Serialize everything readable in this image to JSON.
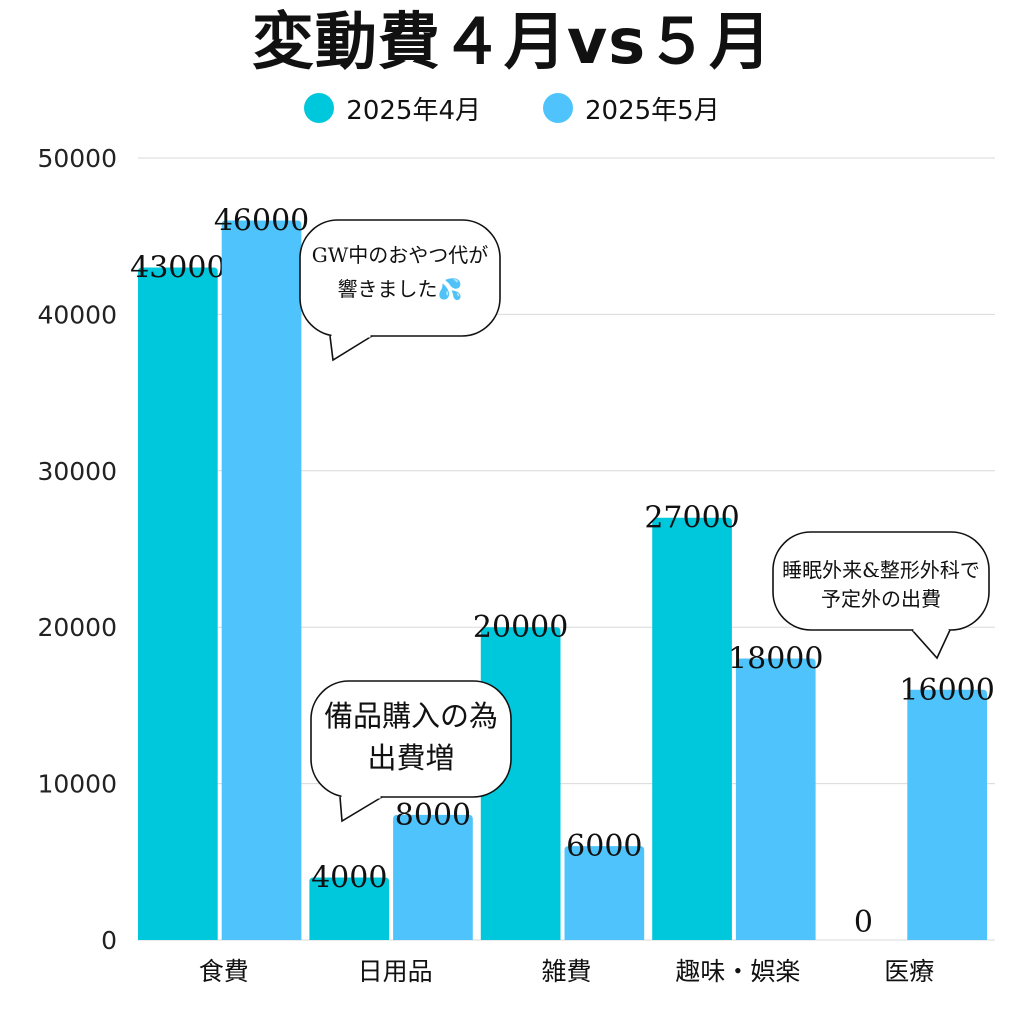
{
  "chart_data": {
    "type": "bar",
    "title": "変動費４月vs５月",
    "categories": [
      "食費",
      "日用品",
      "雑費",
      "趣味・娯楽",
      "医療"
    ],
    "series": [
      {
        "name": "2025年4月",
        "color": "#00C8DC",
        "values": [
          43000,
          4000,
          20000,
          27000,
          0
        ]
      },
      {
        "name": "2025年5月",
        "color": "#4FC4FC",
        "values": [
          46000,
          8000,
          6000,
          18000,
          16000
        ]
      }
    ],
    "y_ticks": [
      "0",
      "10000",
      "20000",
      "30000",
      "40000",
      "50000"
    ],
    "ylim": [
      0,
      50000
    ],
    "grid": true,
    "legend": "top-center",
    "annotations": [
      {
        "lines": [
          "GW中のおやつ代が",
          "響きました💦"
        ]
      },
      {
        "lines": [
          "備品購入の為",
          "出費増"
        ]
      },
      {
        "lines": [
          "睡眠外来&整形外科で",
          "予定外の出費"
        ]
      }
    ]
  }
}
